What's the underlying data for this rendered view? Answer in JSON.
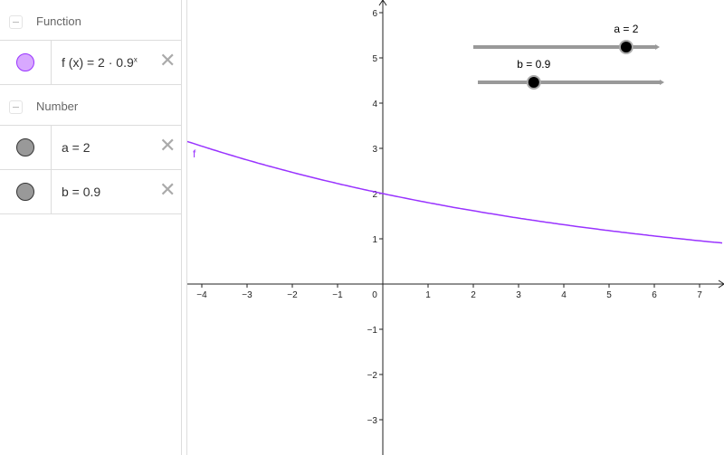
{
  "algebra": {
    "categories": [
      {
        "label": "Function",
        "items": [
          {
            "text": "f (x)  =  2 · 0.9",
            "sup": "x",
            "color": "#d8a8ff",
            "border": "#9933ff"
          }
        ]
      },
      {
        "label": "Number",
        "items": [
          {
            "text": "a  =  2",
            "color": "#999999",
            "border": "#333333"
          },
          {
            "text": "b  =  0.9",
            "color": "#999999",
            "border": "#333333"
          }
        ]
      }
    ],
    "delete_icon": "close-icon"
  },
  "graph": {
    "xlim": [
      -4.32,
      7.54
    ],
    "ylim": [
      -3.78,
      6.28
    ],
    "x_ticks": [
      "−4",
      "−3",
      "−2",
      "−1",
      "0",
      "1",
      "2",
      "3",
      "4",
      "5",
      "6",
      "7"
    ],
    "y_ticks": [
      "−3",
      "−2",
      "−1",
      "1",
      "2",
      "3",
      "4",
      "5",
      "6"
    ],
    "function": {
      "label": "f",
      "a": 2,
      "b": 0.9,
      "color": "#9933ff"
    },
    "sliders": [
      {
        "label": "a = 2",
        "value": 2,
        "fraction": 0.82
      },
      {
        "label": "b = 0.9",
        "value": 0.9,
        "fraction": 0.3
      }
    ]
  }
}
